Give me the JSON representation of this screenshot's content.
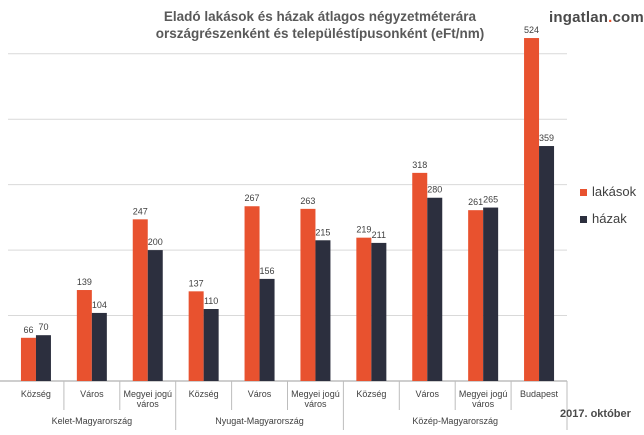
{
  "header": {
    "title_line1": "Eladó lakások és házak átlagos négyzetméterára",
    "title_line2": "országrészenként és településtípusonként (eFt/nm)",
    "brand_main": "ingatlan",
    "brand_accent": ".",
    "brand_suffix": "com",
    "date": "2017. október"
  },
  "colors": {
    "lakasok": "#e8522f",
    "hazak": "#2c2f3e",
    "grid": "#d9d9d9",
    "axis_text": "#404040"
  },
  "chart_data": {
    "type": "bar",
    "title": "Eladó lakások és házak átlagos négyzetméterára országrészenként és településtípusonként (eFt/nm)",
    "categories": [
      "Község",
      "Város",
      "Megyei jogú város",
      "Község",
      "Város",
      "Megyei jogú város",
      "Község",
      "Város",
      "Megyei jogú város",
      "Budapest"
    ],
    "groups": [
      {
        "label": "Kelet-Magyarország",
        "span": [
          0,
          2
        ]
      },
      {
        "label": "Nyugat-Magyarország",
        "span": [
          3,
          5
        ]
      },
      {
        "label": "Közép-Magyarország",
        "span": [
          6,
          9
        ]
      }
    ],
    "series": [
      {
        "name": "lakások",
        "values": [
          66,
          139,
          247,
          137,
          267,
          263,
          219,
          318,
          261,
          524
        ]
      },
      {
        "name": "házak",
        "values": [
          70,
          104,
          200,
          110,
          156,
          215,
          211,
          280,
          265,
          359
        ]
      }
    ],
    "ylim": [
      0,
      600
    ],
    "grid": true,
    "legend": "right"
  }
}
